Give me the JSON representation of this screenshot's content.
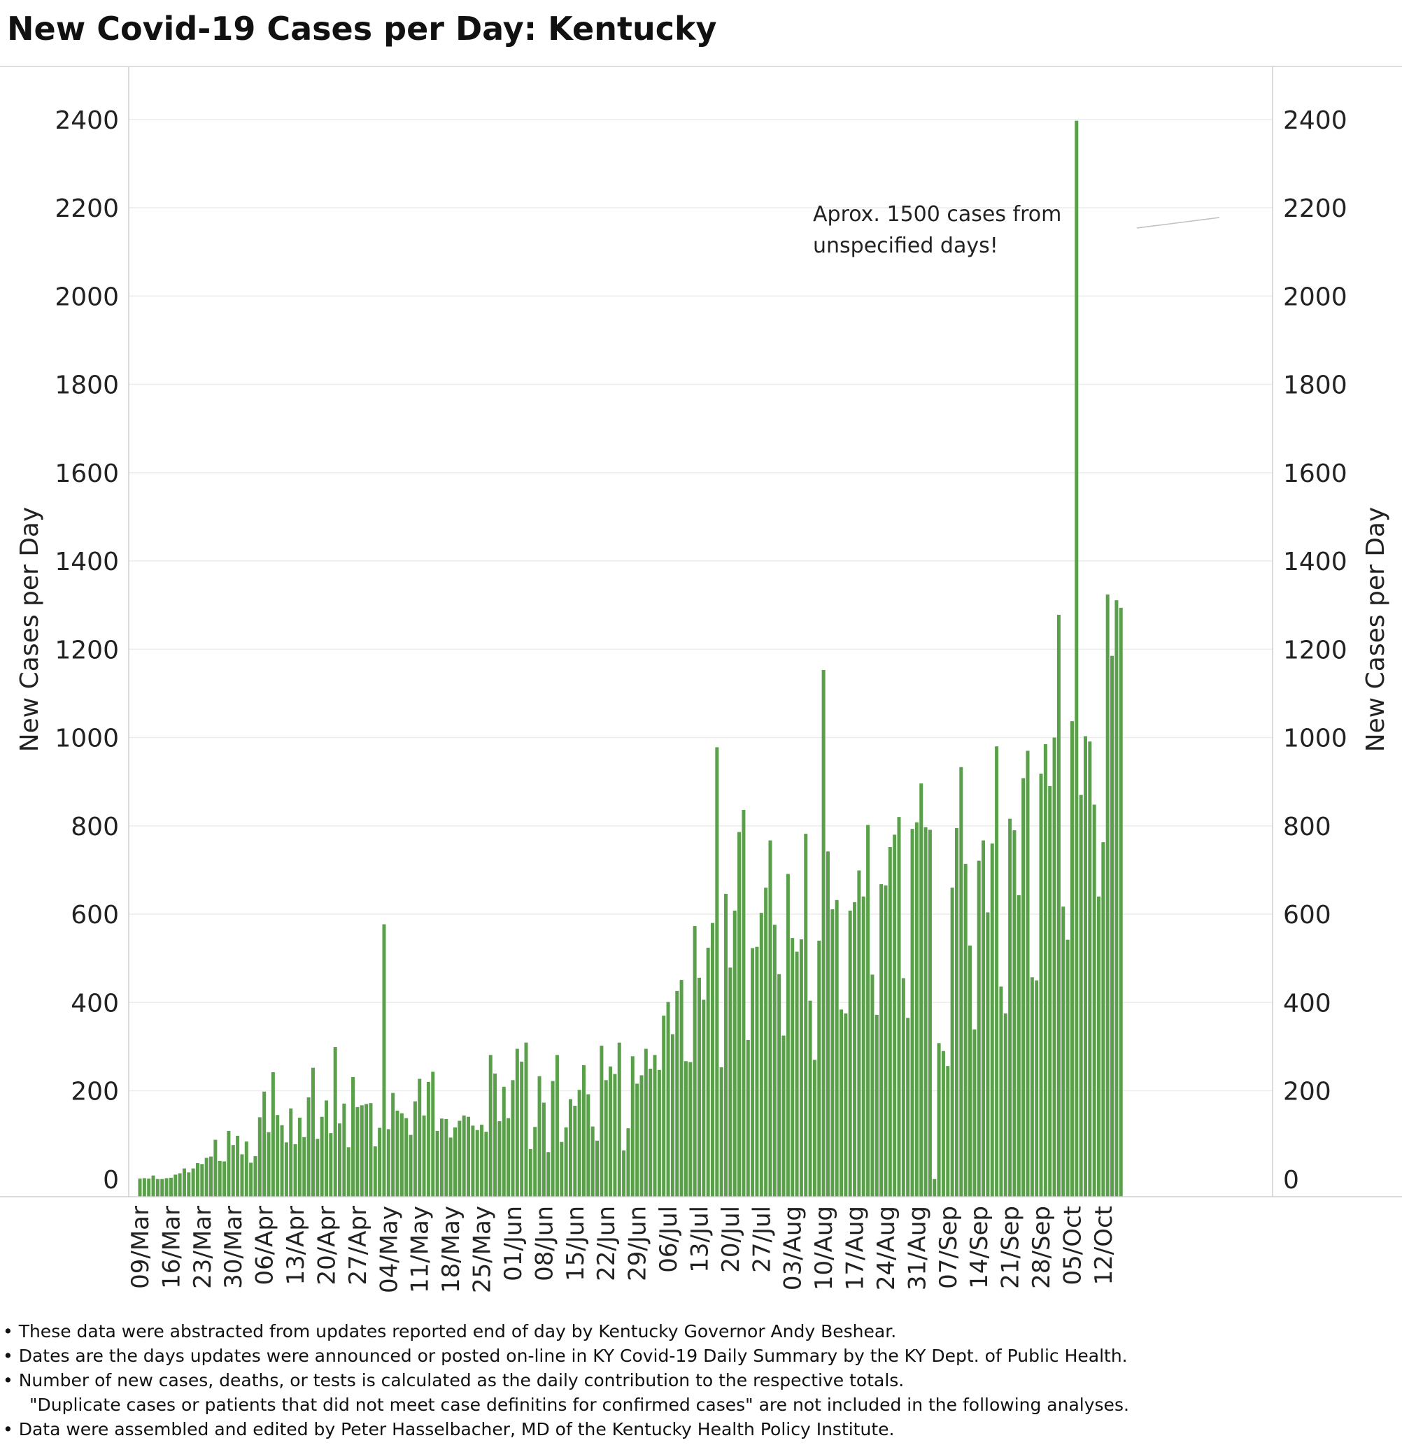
{
  "chart_data": {
    "type": "bar",
    "title": "New Covid-19 Cases per Day: Kentucky",
    "ylabel": "New Cases per Day",
    "ylabel_right": "New Cases per Day",
    "ylim": [
      -40,
      2520
    ],
    "yticks": [
      0,
      200,
      400,
      600,
      800,
      1000,
      1200,
      1400,
      1600,
      1800,
      2000,
      2200,
      2400
    ],
    "grid": true,
    "bar_color": "#5aa04a",
    "start_date": "2020-03-09",
    "xtick_labels": [
      "09/Mar",
      "16/Mar",
      "23/Mar",
      "30/Mar",
      "06/Apr",
      "13/Apr",
      "20/Apr",
      "27/Apr",
      "04/May",
      "11/May",
      "18/May",
      "25/May",
      "01/Jun",
      "08/Jun",
      "15/Jun",
      "22/Jun",
      "29/Jun",
      "06/Jul",
      "13/Jul",
      "20/Jul",
      "27/Jul",
      "03/Aug",
      "10/Aug",
      "17/Aug",
      "24/Aug",
      "31/Aug",
      "07/Sep",
      "14/Sep",
      "21/Sep",
      "28/Sep",
      "05/Oct",
      "12/Oct"
    ],
    "values": [
      1,
      2,
      1,
      8,
      0,
      0,
      2,
      3,
      10,
      13,
      24,
      15,
      24,
      36,
      34,
      48,
      51,
      89,
      41,
      40,
      109,
      77,
      98,
      56,
      85,
      37,
      52,
      140,
      198,
      106,
      242,
      145,
      122,
      83,
      160,
      79,
      139,
      95,
      185,
      252,
      91,
      141,
      178,
      104,
      299,
      126,
      171,
      72,
      231,
      163,
      167,
      170,
      172,
      74,
      116,
      577,
      113,
      195,
      155,
      149,
      138,
      100,
      176,
      227,
      144,
      220,
      243,
      109,
      137,
      136,
      94,
      117,
      132,
      144,
      141,
      121,
      111,
      123,
      107,
      281,
      239,
      131,
      209,
      138,
      224,
      295,
      266,
      309,
      68,
      118,
      233,
      173,
      61,
      222,
      281,
      84,
      117,
      181,
      166,
      202,
      258,
      192,
      119,
      87,
      302,
      224,
      255,
      238,
      309,
      65,
      115,
      278,
      216,
      235,
      295,
      250,
      281,
      247,
      370,
      401,
      328,
      426,
      451,
      267,
      265,
      573,
      456,
      406,
      524,
      580,
      978,
      253,
      646,
      479,
      608,
      786,
      836,
      315,
      523,
      526,
      603,
      660,
      767,
      576,
      464,
      325,
      691,
      546,
      515,
      543,
      782,
      404,
      270,
      540,
      1153,
      742,
      611,
      632,
      384,
      375,
      608,
      627,
      699,
      640,
      802,
      463,
      372,
      668,
      665,
      752,
      780,
      820,
      455,
      365,
      793,
      808,
      896,
      797,
      791,
      0,
      308,
      290,
      256,
      660,
      795,
      933,
      714,
      529,
      339,
      721,
      767,
      604,
      760,
      980,
      436,
      375,
      816,
      790,
      643,
      908,
      970,
      457,
      450,
      918,
      985,
      890,
      1000,
      1278,
      617,
      542,
      1037,
      2397,
      870,
      1003,
      991,
      848,
      640,
      763,
      1324,
      1185,
      1311,
      1294
    ]
  },
  "annotation": {
    "line1": "Aprox. 1500 cases from",
    "line2": "unspecified days!"
  },
  "notes": {
    "n1": "• These data were abstracted from updates reported end of day by Kentucky Governor Andy Beshear.",
    "n2": "• Dates are the days  updates were announced or posted on-line in KY Covid-19 Daily Summary by the KY Dept. of Public Health.",
    "n3": "• Number of new cases, deaths, or tests is calculated as the daily contribution to the respective totals.",
    "n4": "\"Duplicate cases or patients that did not meet  case definitins for confirmed cases\" are not included in the following analyses.",
    "n5": "• Data were assembled and edited by Peter Hasselbacher, MD of the Kentucky Health Policy Institute."
  }
}
